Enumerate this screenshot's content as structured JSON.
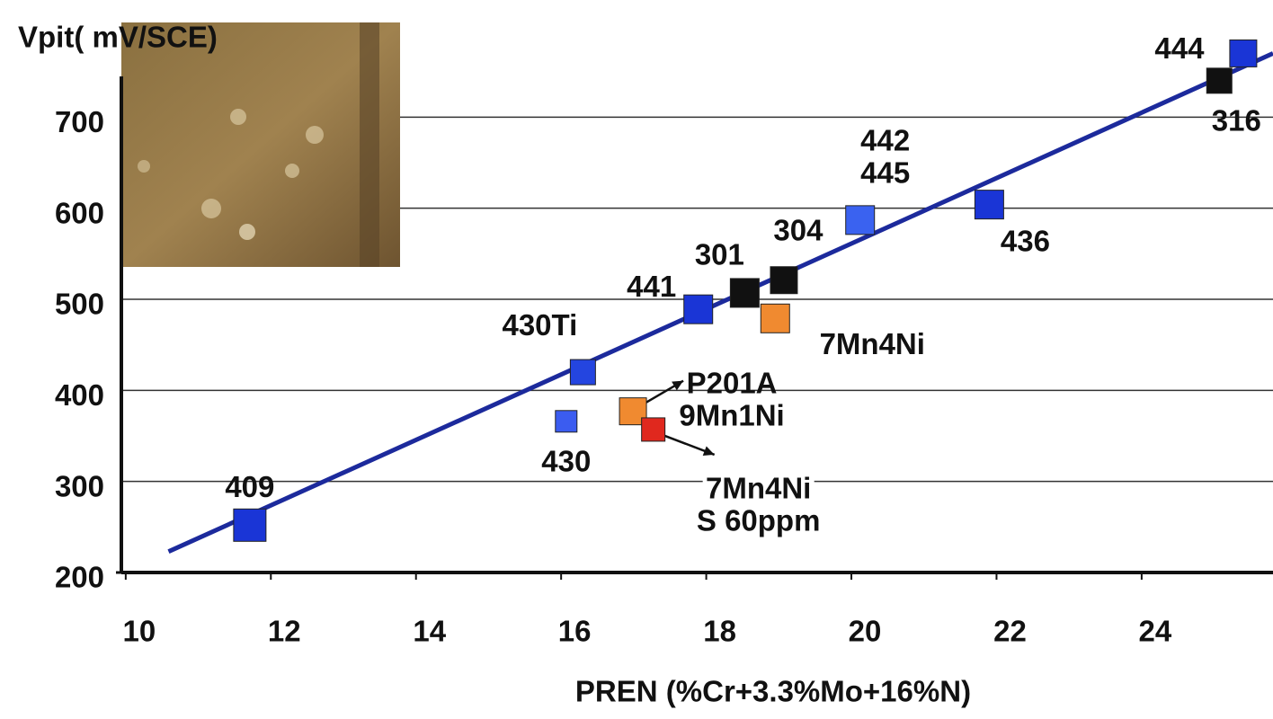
{
  "chart_data": {
    "type": "scatter",
    "y_label": "Vpit( mV/SCE)",
    "x_label": "PREN (%Cr+3.3%Mo+16%N)",
    "xlim": [
      9.94,
      25.81
    ],
    "ylim": [
      200,
      802
    ],
    "xticks": [
      10,
      12,
      14,
      16,
      18,
      20,
      22,
      24
    ],
    "yticks": [
      200,
      300,
      400,
      500,
      600,
      700
    ],
    "grid": true,
    "points": [
      {
        "x": 11.71,
        "y": 252,
        "color": "#1a35d6",
        "label": [
          "409"
        ]
      },
      {
        "x": 16.07,
        "y": 366,
        "color": "#3b5cf0",
        "label": [
          "430"
        ]
      },
      {
        "x": 16.3,
        "y": 420,
        "color": "#2445e0",
        "label": [
          "430Ti"
        ]
      },
      {
        "x": 17.89,
        "y": 489,
        "color": "#1a35d6",
        "label": [
          "441"
        ]
      },
      {
        "x": 18.53,
        "y": 507,
        "color": "#111111",
        "label": [
          "301"
        ]
      },
      {
        "x": 19.07,
        "y": 521,
        "color": "#111111",
        "label": [
          "304"
        ]
      },
      {
        "x": 18.95,
        "y": 479,
        "color": "#f08a30",
        "label": [
          "7Mn4Ni"
        ]
      },
      {
        "x": 16.99,
        "y": 377,
        "color": "#f08a30",
        "label": [
          "P201A",
          "9Mn1Ni"
        ]
      },
      {
        "x": 17.27,
        "y": 357,
        "color": "#e0281e",
        "label": [
          "7Mn4Ni",
          "S 60ppm"
        ]
      },
      {
        "x": 20.12,
        "y": 587,
        "color": "#3a62f0",
        "label": [
          "442",
          "445"
        ]
      },
      {
        "x": 21.9,
        "y": 604,
        "color": "#1a35d6",
        "label": [
          "436"
        ]
      },
      {
        "x": 25.07,
        "y": 740,
        "color": "#111111",
        "label": [
          "316"
        ]
      },
      {
        "x": 25.4,
        "y": 770,
        "color": "#1a35d6",
        "label": [
          "444"
        ]
      }
    ],
    "trendline": {
      "x": [
        10.59,
        25.81
      ],
      "y": [
        223,
        770
      ],
      "color": "#1c2a9c"
    }
  }
}
